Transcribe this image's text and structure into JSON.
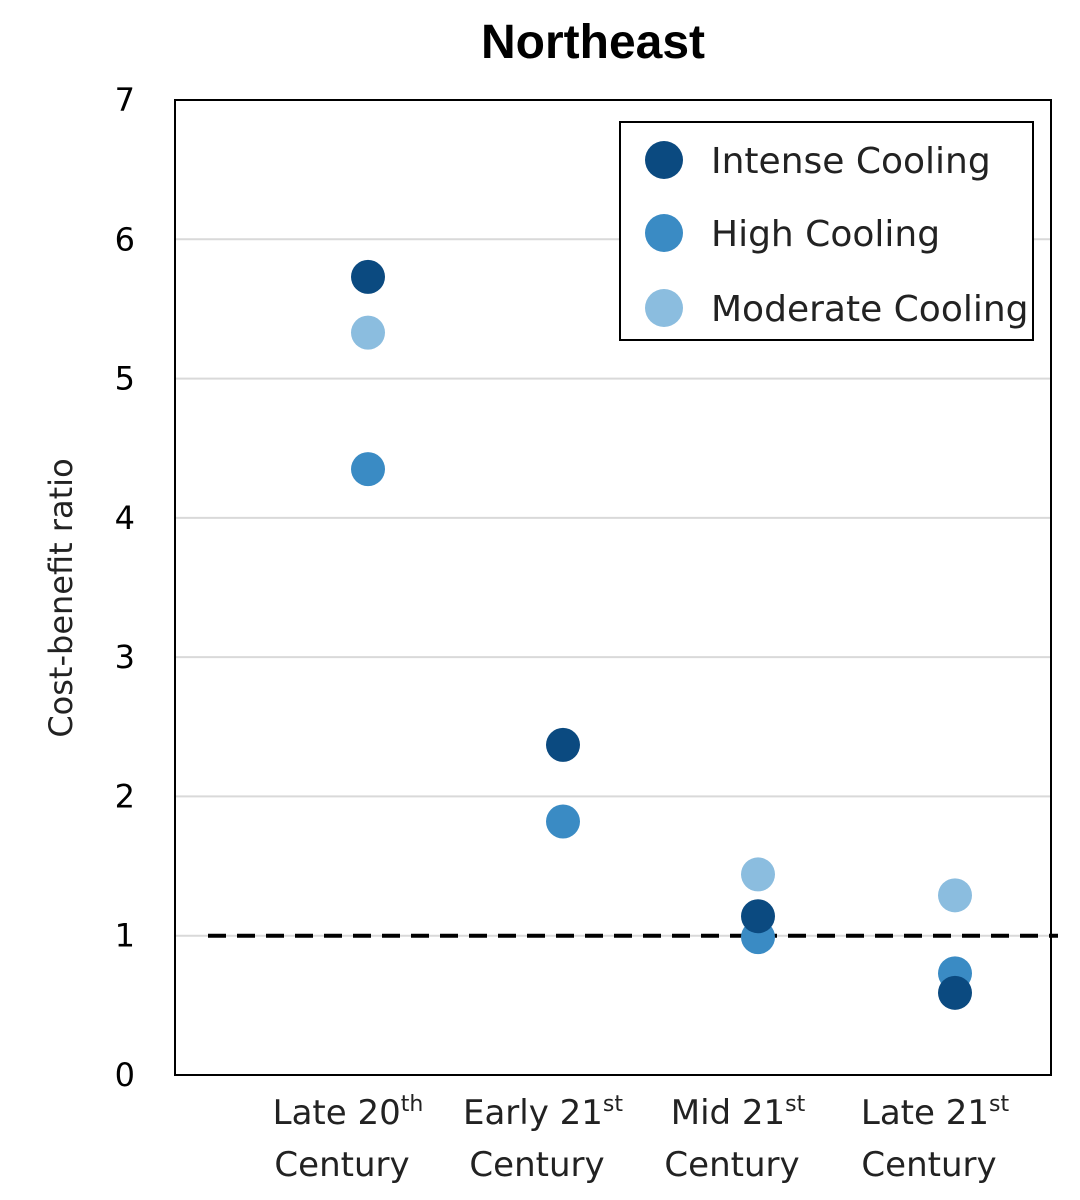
{
  "chart_data": {
    "type": "scatter",
    "title": "Northeast",
    "ylabel": "Cost-benefit ratio",
    "xlabel": "",
    "ylim": [
      0,
      7
    ],
    "yticks": [
      0,
      1,
      2,
      3,
      4,
      5,
      6,
      7
    ],
    "grid": true,
    "legend_position": "top-right",
    "reference_line": 1,
    "categories": [
      {
        "line1": "Late 20",
        "sup": "th",
        "line2": "Century"
      },
      {
        "line1": "Early 21",
        "sup": "st",
        "line2": "Century"
      },
      {
        "line1": "Mid 21",
        "sup": "st",
        "line2": "Century"
      },
      {
        "line1": "Late 21",
        "sup": "st",
        "line2": "Century"
      }
    ],
    "series": [
      {
        "name": "Intense Cooling",
        "color": "#0b4a80",
        "values": [
          5.73,
          2.37,
          1.14,
          0.59
        ]
      },
      {
        "name": "High Cooling",
        "color": "#3a8bc4",
        "values": [
          4.35,
          1.82,
          0.99,
          0.73
        ]
      },
      {
        "name": "Moderate Cooling",
        "color": "#8bbddf",
        "values": [
          5.33,
          null,
          1.44,
          1.29
        ]
      }
    ]
  }
}
